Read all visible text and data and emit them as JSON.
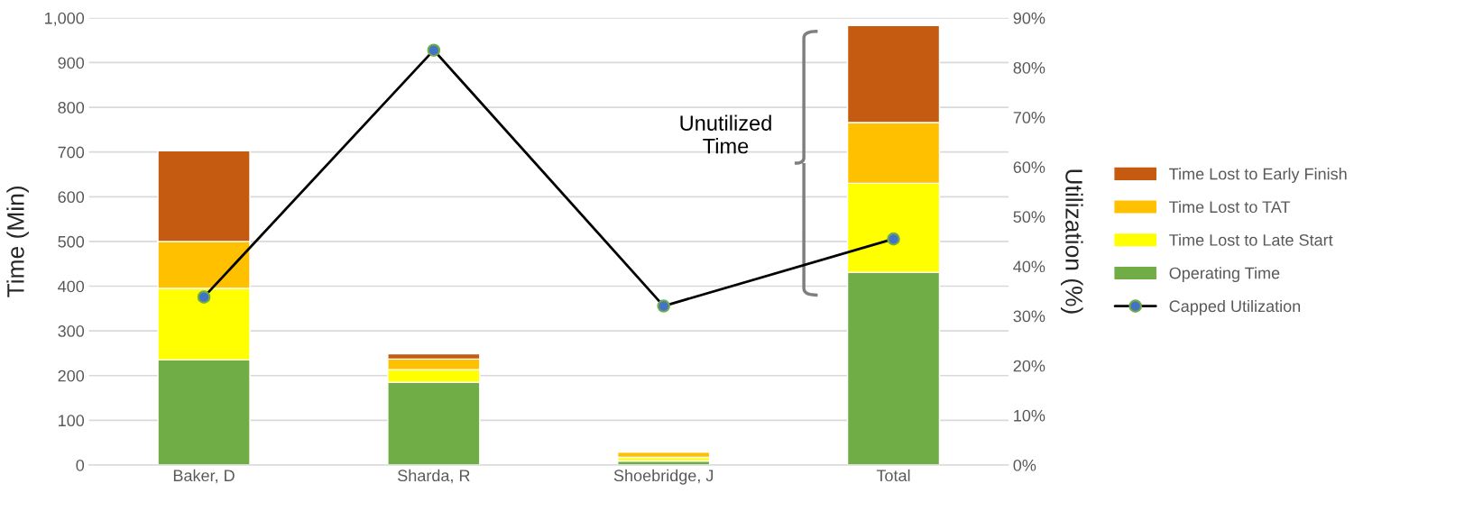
{
  "chart_data": {
    "type": "bar",
    "stacked": true,
    "ylabel": "Time (Min)",
    "y2label": "Utilization (%)",
    "categories": [
      "Baker, D",
      "Sharda, R",
      "Shoebridge, J",
      "Total"
    ],
    "series": [
      {
        "name": "Operating Time",
        "color": "#70ad47",
        "values": [
          235,
          185,
          9,
          431
        ]
      },
      {
        "name": "Time Lost to Late Start",
        "color": "#ffff00",
        "values": [
          160,
          28,
          8,
          199
        ]
      },
      {
        "name": "Time Lost to TAT",
        "color": "#ffc000",
        "values": [
          105,
          24,
          12,
          136
        ]
      },
      {
        "name": "Time Lost to Early Finish",
        "color": "#c55a11",
        "values": [
          203,
          12,
          2,
          217
        ]
      },
      {
        "name": "Capped Utilization",
        "type": "line",
        "axis": "y2",
        "color": "#000000",
        "marker": "circle",
        "values": [
          33.8,
          83.5,
          32,
          45.5
        ]
      }
    ],
    "ylim": [
      0,
      1000
    ],
    "yticks": [
      0,
      100,
      200,
      300,
      400,
      500,
      600,
      700,
      800,
      900,
      {
        "value": 1000,
        "label": "1,000"
      }
    ],
    "y2lim": [
      0,
      90
    ],
    "y2ticks": [
      {
        "value": 0,
        "label": "0%"
      },
      {
        "value": 10,
        "label": "10%"
      },
      {
        "value": 20,
        "label": "20%"
      },
      {
        "value": 30,
        "label": "30%"
      },
      {
        "value": 40,
        "label": "40%"
      },
      {
        "value": 50,
        "label": "50%"
      },
      {
        "value": 60,
        "label": "60%"
      },
      {
        "value": 70,
        "label": "70%"
      },
      {
        "value": 80,
        "label": "80%"
      },
      {
        "value": 90,
        "label": "90%"
      }
    ],
    "annotations": [
      "Unutilized\nTime"
    ],
    "grid": "y",
    "legend": "right"
  }
}
